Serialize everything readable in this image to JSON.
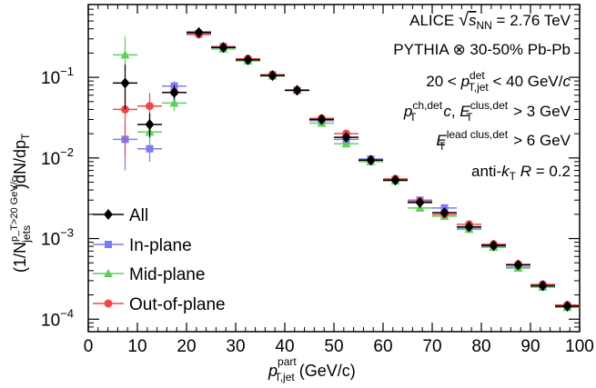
{
  "chart_data": {
    "type": "scatter",
    "x_scale": "linear",
    "y_scale": "log",
    "xlim": [
      0,
      100
    ],
    "ylim": [
      7e-05,
      0.8
    ],
    "x_ticks": [
      0,
      10,
      20,
      30,
      40,
      50,
      60,
      70,
      80,
      90,
      100
    ],
    "x_tick_labels": [
      "0",
      "10",
      "20",
      "30",
      "40",
      "50",
      "60",
      "70",
      "80",
      "90",
      "100"
    ],
    "y_ticks": [
      0.0001,
      0.001,
      0.01,
      0.1
    ],
    "y_tick_labels": [
      {
        "base": "10",
        "exp": "−4"
      },
      {
        "base": "10",
        "exp": "−3"
      },
      {
        "base": "10",
        "exp": "−2"
      },
      {
        "base": "10",
        "exp": "−1"
      }
    ],
    "xlabel": {
      "main": "p",
      "sup": "part",
      "sub": "T,jet",
      "unit": " (GeV/c)"
    },
    "ylabel": {
      "prefix": "(1/N",
      "sup": "p_T>20 GeV/c",
      "sub": "jets",
      "suffix": ")dN/dp",
      "sub2": "T"
    },
    "annotations": [
      {
        "text": "ALICE √s_NN = 2.76 TeV",
        "lines": [
          "ALICE ",
          "s",
          "NN",
          " = 2.76 TeV"
        ]
      },
      {
        "text": "PYTHIA ⊗ 30-50% Pb-Pb"
      },
      {
        "text": "20 < p_T,jet^det < 40 GeV/c",
        "parts": [
          "20 < ",
          "p",
          "det",
          "T,jet",
          " < 40 GeV/",
          "c"
        ]
      },
      {
        "text": "p_T^ch,det c, E_T^clus,det > 3 GeV",
        "parts": [
          "p",
          "ch,det",
          "T",
          "c",
          ", ",
          "E",
          "clus,det",
          "T",
          " > 3 GeV"
        ]
      },
      {
        "text": "E_T^lead clus,det > 6 GeV",
        "parts": [
          "E",
          "lead clus,det",
          "T",
          " > 6 GeV"
        ]
      },
      {
        "text": "anti-k_T R = 0.2",
        "parts": [
          "anti-",
          "k",
          "T",
          " ",
          "R",
          " = 0.2"
        ]
      }
    ],
    "legend": {
      "position": "lower-left",
      "entries": [
        {
          "name": "All",
          "color": "#000000",
          "marker": "diamond"
        },
        {
          "name": "In-plane",
          "color": "#7b7bf5",
          "marker": "square"
        },
        {
          "name": "Mid-plane",
          "color": "#5ccf5c",
          "marker": "triangle"
        },
        {
          "name": "Out-of-plane",
          "color": "#f24646",
          "marker": "circle"
        }
      ]
    },
    "x_bins": [
      [
        5,
        10
      ],
      [
        10,
        15
      ],
      [
        15,
        20
      ],
      [
        20,
        25
      ],
      [
        25,
        30
      ],
      [
        30,
        35
      ],
      [
        35,
        40
      ],
      [
        40,
        45
      ],
      [
        45,
        50
      ],
      [
        50,
        55
      ],
      [
        55,
        60
      ],
      [
        60,
        65
      ],
      [
        65,
        70
      ],
      [
        70,
        75
      ],
      [
        75,
        80
      ],
      [
        80,
        85
      ],
      [
        85,
        90
      ],
      [
        90,
        95
      ],
      [
        95,
        100
      ]
    ],
    "series": [
      {
        "name": "All",
        "values": [
          0.085,
          0.026,
          0.065,
          0.36,
          0.235,
          0.165,
          0.105,
          0.069,
          0.03,
          0.018,
          0.0094,
          0.0053,
          0.0028,
          0.0021,
          0.0014,
          0.00082,
          0.00047,
          0.00026,
          0.000145
        ],
        "err_low": [
          0.045,
          0.008,
          0.012,
          0.0,
          0.0,
          0.0,
          0.0,
          0.0,
          0.0,
          0.0,
          0.0,
          0.0,
          0.0,
          0.0,
          0.0,
          0.0,
          0.0,
          0.0,
          0.0
        ],
        "err_high": [
          0.06,
          0.01,
          0.015,
          0.0,
          0.0,
          0.0,
          0.0,
          0.0,
          0.0,
          0.0,
          0.0,
          0.0,
          0.0,
          0.0,
          0.0,
          0.0,
          0.0,
          0.0,
          0.0
        ]
      },
      {
        "name": "In-plane",
        "values": [
          0.017,
          0.013,
          0.078,
          0.35,
          0.24,
          0.165,
          0.107,
          0.069,
          0.029,
          0.017,
          0.0097,
          0.0054,
          0.003,
          0.0024,
          0.00135,
          0.0008,
          0.00044,
          0.00026,
          0.000145
        ],
        "err_low": [
          0.01,
          0.004,
          0.01,
          0.0,
          0.0,
          0.0,
          0.0,
          0.0,
          0.0,
          0.0,
          0.0,
          0.0,
          0.0,
          0.0,
          0.0,
          0.0,
          0.0,
          0.0,
          0.0
        ],
        "err_high": [
          0.01,
          0.005,
          0.012,
          0.0,
          0.0,
          0.0,
          0.0,
          0.0,
          0.0,
          0.0,
          0.0,
          0.0,
          0.0,
          0.0,
          0.0,
          0.0,
          0.0,
          0.0,
          0.0
        ]
      },
      {
        "name": "Mid-plane",
        "values": [
          0.19,
          0.021,
          0.048,
          0.37,
          0.225,
          0.16,
          0.104,
          0.07,
          0.027,
          0.015,
          0.009,
          0.0052,
          0.0024,
          0.0019,
          0.0013,
          0.00078,
          0.00043,
          0.00025,
          0.00014
        ],
        "err_low": [
          0.09,
          0.007,
          0.01,
          0.0,
          0.0,
          0.0,
          0.0,
          0.0,
          0.0,
          0.0,
          0.0,
          0.0,
          0.0,
          0.0,
          0.0,
          0.0,
          0.0,
          0.0,
          0.0
        ],
        "err_high": [
          0.13,
          0.01,
          0.012,
          0.0,
          0.0,
          0.0,
          0.0,
          0.0,
          0.0,
          0.0,
          0.0,
          0.0,
          0.0,
          0.0,
          0.0,
          0.0,
          0.0,
          0.0,
          0.0
        ]
      },
      {
        "name": "Out-of-plane",
        "values": [
          0.04,
          0.044,
          0.065,
          0.34,
          0.24,
          0.17,
          0.108,
          0.069,
          0.031,
          0.02,
          0.0094,
          0.0055,
          0.0029,
          0.002,
          0.0015,
          0.00085,
          0.00048,
          0.00027,
          0.00015
        ],
        "err_low": [
          0.03,
          0.015,
          0.012,
          0.0,
          0.0,
          0.0,
          0.0,
          0.0,
          0.0,
          0.0,
          0.0,
          0.0,
          0.0,
          0.0,
          0.0,
          0.0,
          0.0,
          0.0,
          0.0
        ],
        "err_high": [
          0.035,
          0.02,
          0.015,
          0.0,
          0.0,
          0.0,
          0.0,
          0.0,
          0.0,
          0.0,
          0.0,
          0.0,
          0.0,
          0.0,
          0.0,
          0.0,
          0.0,
          0.0,
          0.0
        ]
      }
    ],
    "grid": false
  }
}
